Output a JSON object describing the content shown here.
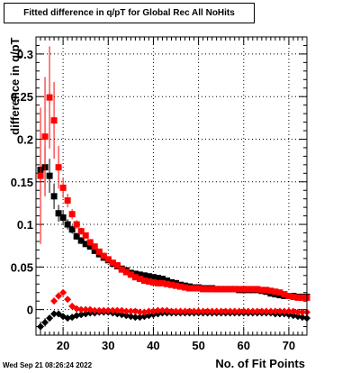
{
  "chart_data": {
    "type": "scatter",
    "title": "Fitted difference in q/pT for Global Rec All NoHits",
    "xlabel": "No. of Fit Points",
    "ylabel": "difference in q/pT",
    "xlim": [
      14,
      74
    ],
    "ylim": [
      -0.03,
      0.32
    ],
    "x_ticks": [
      20,
      30,
      40,
      50,
      60,
      70
    ],
    "y_ticks": [
      0,
      0.05,
      0.1,
      0.15,
      0.2,
      0.25,
      0.3
    ],
    "x_tick_labels": [
      "20",
      "30",
      "40",
      "50",
      "60",
      "70"
    ],
    "y_tick_labels": [
      "0",
      "0.05",
      "0.1",
      "0.15",
      "0.2",
      "0.25",
      "0.3"
    ],
    "grid": true,
    "series": [
      {
        "color": "#000000",
        "marker": "square",
        "x": [
          15,
          16,
          17,
          18,
          19,
          20,
          21,
          22,
          23,
          24,
          25,
          26,
          27,
          28,
          29,
          30,
          31,
          32,
          33,
          34,
          35,
          36,
          37,
          38,
          39,
          40,
          41,
          42,
          43,
          44,
          45,
          46,
          47,
          48,
          49,
          50,
          51,
          52,
          53,
          54,
          55,
          56,
          57,
          58,
          59,
          60,
          61,
          62,
          63,
          64,
          65,
          66,
          67,
          68,
          69,
          70,
          71,
          72,
          73,
          74
        ],
        "y": [
          0.164,
          0.167,
          0.157,
          0.133,
          0.113,
          0.108,
          0.1,
          0.094,
          0.086,
          0.081,
          0.077,
          0.074,
          0.069,
          0.065,
          0.061,
          0.058,
          0.054,
          0.051,
          0.048,
          0.046,
          0.043,
          0.042,
          0.041,
          0.04,
          0.039,
          0.038,
          0.037,
          0.036,
          0.034,
          0.032,
          0.031,
          0.029,
          0.028,
          0.027,
          0.026,
          0.026,
          0.025,
          0.025,
          0.025,
          0.024,
          0.024,
          0.024,
          0.024,
          0.024,
          0.023,
          0.023,
          0.023,
          0.023,
          0.023,
          0.022,
          0.021,
          0.019,
          0.018,
          0.017,
          0.016,
          0.016,
          0.016,
          0.015,
          0.015,
          0.015
        ],
        "y_err": [
          0.03,
          0.025,
          0.02,
          0.015,
          0.01,
          0.008,
          0.006,
          0.005,
          0.004,
          0.004,
          0.003,
          0.003,
          0.003,
          0.002,
          0.002,
          0.002,
          0.002,
          0.002,
          0.002,
          0.002,
          0.002,
          0.002,
          0.002,
          0.002,
          0.002,
          0.002,
          0.002,
          0.002,
          0.002,
          0.002,
          0.002,
          0.002,
          0.002,
          0.002,
          0.002,
          0.002,
          0.002,
          0.002,
          0.002,
          0.002,
          0.002,
          0.002,
          0.002,
          0.002,
          0.002,
          0.002,
          0.002,
          0.002,
          0.002,
          0.002,
          0.002,
          0.002,
          0.002,
          0.002,
          0.002,
          0.002,
          0.002,
          0.002,
          0.002,
          0.002
        ]
      },
      {
        "color": "#ff0000",
        "marker": "square",
        "x": [
          15,
          16,
          17,
          18,
          19,
          20,
          21,
          22,
          23,
          24,
          25,
          26,
          27,
          28,
          29,
          30,
          31,
          32,
          33,
          34,
          35,
          36,
          37,
          38,
          39,
          40,
          41,
          42,
          43,
          44,
          45,
          46,
          47,
          48,
          49,
          50,
          51,
          52,
          53,
          54,
          55,
          56,
          57,
          58,
          59,
          60,
          61,
          62,
          63,
          64,
          65,
          66,
          67,
          68,
          69,
          70,
          71,
          72,
          73,
          74
        ],
        "y": [
          0.157,
          0.203,
          0.249,
          0.222,
          0.167,
          0.143,
          0.128,
          0.112,
          0.1,
          0.092,
          0.087,
          0.079,
          0.074,
          0.068,
          0.063,
          0.059,
          0.055,
          0.052,
          0.047,
          0.044,
          0.041,
          0.038,
          0.036,
          0.034,
          0.033,
          0.032,
          0.031,
          0.031,
          0.03,
          0.029,
          0.028,
          0.027,
          0.026,
          0.025,
          0.025,
          0.025,
          0.024,
          0.024,
          0.024,
          0.024,
          0.024,
          0.024,
          0.024,
          0.024,
          0.024,
          0.024,
          0.024,
          0.024,
          0.024,
          0.023,
          0.023,
          0.022,
          0.021,
          0.02,
          0.018,
          0.016,
          0.015,
          0.014,
          0.014,
          0.014
        ],
        "y_err": [
          0.08,
          0.07,
          0.06,
          0.045,
          0.025,
          0.012,
          0.008,
          0.006,
          0.005,
          0.004,
          0.003,
          0.003,
          0.003,
          0.002,
          0.002,
          0.002,
          0.002,
          0.002,
          0.002,
          0.002,
          0.002,
          0.002,
          0.002,
          0.002,
          0.002,
          0.002,
          0.002,
          0.002,
          0.002,
          0.002,
          0.002,
          0.002,
          0.002,
          0.002,
          0.002,
          0.002,
          0.002,
          0.002,
          0.002,
          0.002,
          0.002,
          0.002,
          0.002,
          0.002,
          0.002,
          0.002,
          0.002,
          0.002,
          0.002,
          0.002,
          0.002,
          0.002,
          0.002,
          0.002,
          0.002,
          0.002,
          0.002,
          0.002,
          0.002,
          0.002
        ]
      },
      {
        "color": "#000000",
        "marker": "diamond",
        "x": [
          15,
          16,
          17,
          18,
          19,
          20,
          21,
          22,
          23,
          24,
          25,
          26,
          27,
          28,
          29,
          30,
          31,
          32,
          33,
          34,
          35,
          36,
          37,
          38,
          39,
          40,
          41,
          42,
          43,
          44,
          45,
          46,
          47,
          48,
          49,
          50,
          51,
          52,
          53,
          54,
          55,
          56,
          57,
          58,
          59,
          60,
          61,
          62,
          63,
          64,
          65,
          66,
          67,
          68,
          69,
          70,
          71,
          72,
          73,
          74
        ],
        "y": [
          -0.02,
          -0.015,
          -0.01,
          -0.005,
          -0.005,
          -0.008,
          -0.01,
          -0.009,
          -0.007,
          -0.006,
          -0.005,
          -0.004,
          -0.004,
          -0.003,
          -0.003,
          -0.003,
          -0.004,
          -0.005,
          -0.006,
          -0.007,
          -0.008,
          -0.009,
          -0.009,
          -0.008,
          -0.007,
          -0.006,
          -0.005,
          -0.004,
          -0.004,
          -0.004,
          -0.004,
          -0.004,
          -0.004,
          -0.004,
          -0.004,
          -0.004,
          -0.004,
          -0.004,
          -0.004,
          -0.004,
          -0.004,
          -0.004,
          -0.004,
          -0.004,
          -0.004,
          -0.004,
          -0.004,
          -0.004,
          -0.004,
          -0.004,
          -0.004,
          -0.004,
          -0.005,
          -0.005,
          -0.005,
          -0.006,
          -0.007,
          -0.008,
          -0.009,
          -0.01
        ],
        "y_err": [
          0.006,
          0.005,
          0.004,
          0.003,
          0.003,
          0.002,
          0.002,
          0.002,
          0.002,
          0.001,
          0.001,
          0.001,
          0.001,
          0.001,
          0.001,
          0.001,
          0.001,
          0.001,
          0.001,
          0.001,
          0.001,
          0.001,
          0.001,
          0.001,
          0.001,
          0.001,
          0.001,
          0.001,
          0.001,
          0.001,
          0.001,
          0.001,
          0.001,
          0.001,
          0.001,
          0.001,
          0.001,
          0.001,
          0.001,
          0.001,
          0.001,
          0.001,
          0.001,
          0.001,
          0.001,
          0.001,
          0.001,
          0.001,
          0.001,
          0.001,
          0.001,
          0.001,
          0.001,
          0.001,
          0.001,
          0.001,
          0.001,
          0.001,
          0.001,
          0.001
        ]
      },
      {
        "color": "#ff0000",
        "marker": "diamond",
        "x": [
          18,
          19,
          20,
          21,
          22,
          23,
          24,
          25,
          26,
          27,
          28,
          29,
          30,
          31,
          32,
          33,
          34,
          35,
          36,
          37,
          38,
          39,
          40,
          41,
          42,
          43,
          44,
          45,
          46,
          47,
          48,
          49,
          50,
          51,
          52,
          53,
          54,
          55,
          56,
          57,
          58,
          59,
          60,
          61,
          62,
          63,
          64,
          65,
          66,
          67,
          68,
          69,
          70,
          71,
          72,
          73,
          74
        ],
        "y": [
          0.01,
          0.016,
          0.02,
          0.012,
          0.004,
          0.001,
          0.0,
          0.0,
          0.0,
          -0.001,
          -0.001,
          -0.001,
          -0.001,
          -0.001,
          -0.001,
          -0.001,
          -0.002,
          -0.002,
          -0.002,
          -0.003,
          -0.003,
          -0.002,
          -0.002,
          -0.001,
          -0.001,
          -0.001,
          -0.002,
          -0.002,
          -0.002,
          -0.002,
          -0.002,
          -0.002,
          -0.002,
          -0.002,
          -0.002,
          -0.002,
          -0.002,
          -0.002,
          -0.002,
          -0.002,
          -0.002,
          -0.002,
          -0.002,
          -0.002,
          -0.002,
          -0.002,
          -0.002,
          -0.002,
          -0.002,
          -0.002,
          -0.002,
          -0.002,
          -0.002,
          -0.002,
          -0.003,
          -0.003,
          -0.003
        ],
        "y_err": [
          0.004,
          0.004,
          0.003,
          0.003,
          0.002,
          0.002,
          0.001,
          0.001,
          0.001,
          0.001,
          0.001,
          0.001,
          0.001,
          0.001,
          0.001,
          0.001,
          0.001,
          0.001,
          0.001,
          0.001,
          0.001,
          0.001,
          0.001,
          0.001,
          0.001,
          0.001,
          0.001,
          0.001,
          0.001,
          0.001,
          0.001,
          0.001,
          0.001,
          0.001,
          0.001,
          0.001,
          0.001,
          0.001,
          0.001,
          0.001,
          0.001,
          0.001,
          0.001,
          0.001,
          0.001,
          0.001,
          0.001,
          0.001,
          0.001,
          0.001,
          0.001,
          0.001,
          0.001,
          0.001,
          0.001,
          0.001,
          0.001
        ]
      }
    ]
  },
  "footer": {
    "timestamp": "Wed Sep 21 08:26:24 2022"
  }
}
